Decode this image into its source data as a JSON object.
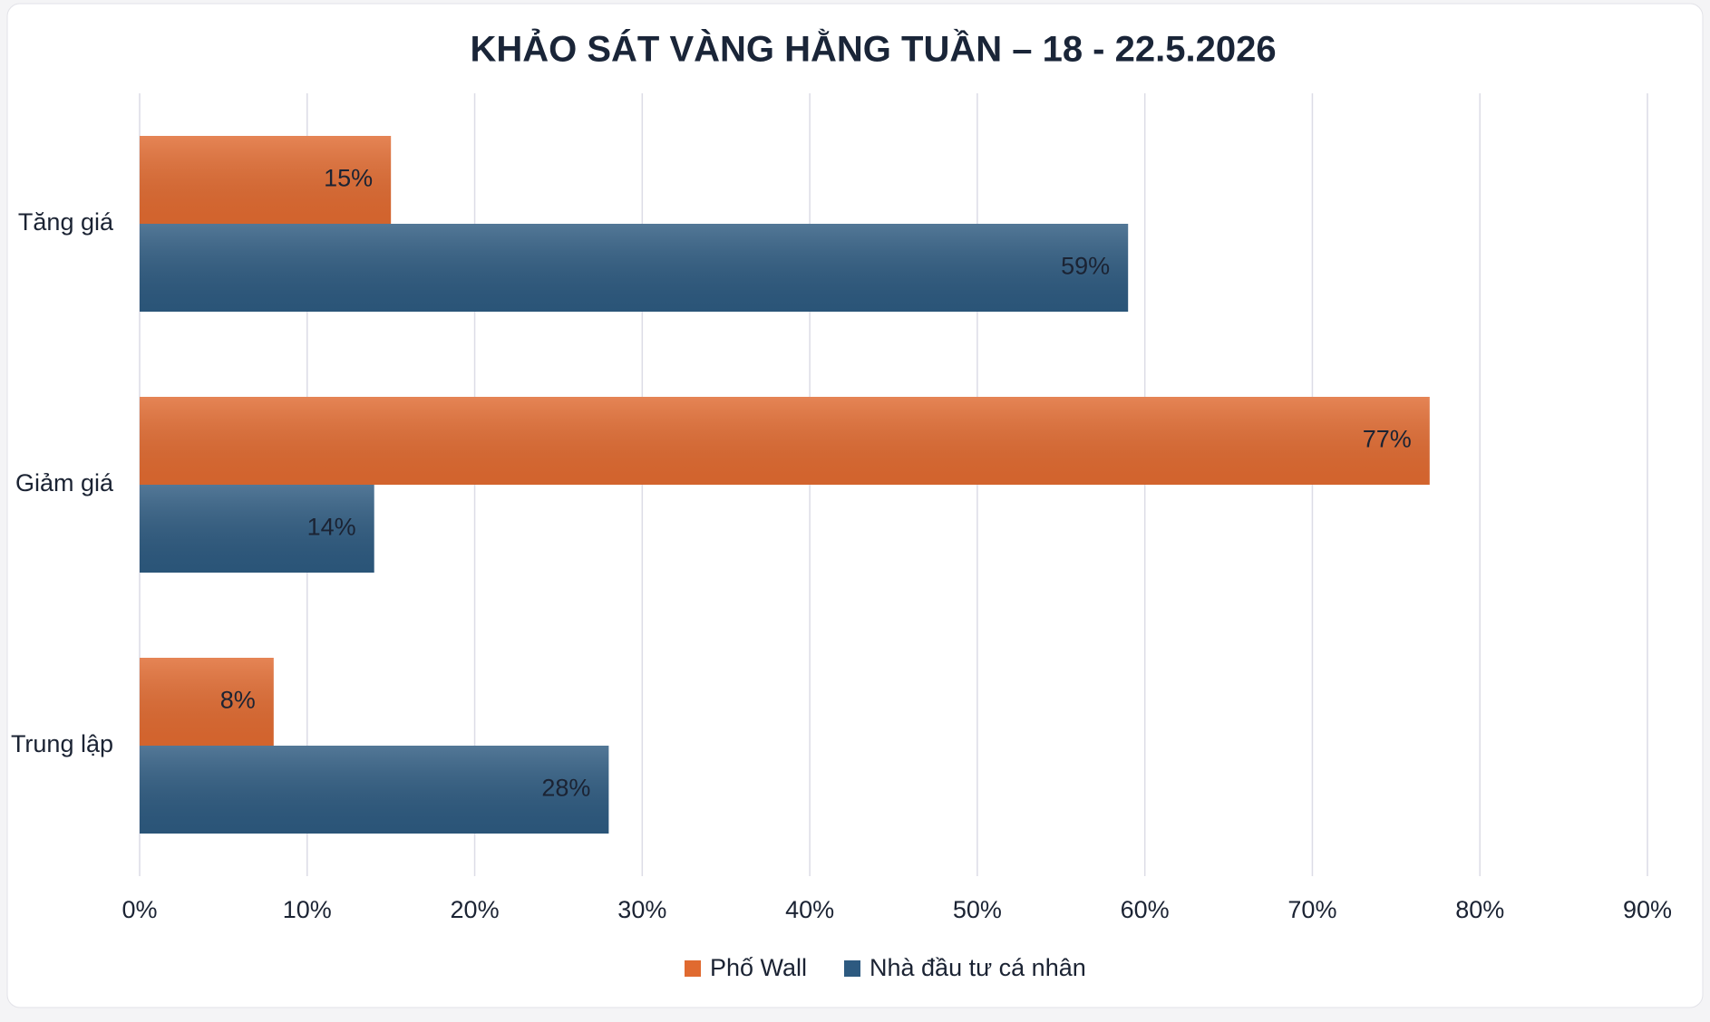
{
  "chart_data": {
    "type": "bar",
    "orientation": "horizontal",
    "title": "KHẢO SÁT VÀNG HẰNG TUẦN – 18 - 22.5.2026",
    "categories": [
      "Tăng giá",
      "Giảm giá",
      "Trung lập"
    ],
    "series": [
      {
        "name": "Phố Wall",
        "color": "#e06a30",
        "values": [
          15,
          77,
          8
        ],
        "value_labels": [
          "15%",
          "77%",
          "8%"
        ]
      },
      {
        "name": "Nhà đầu tư cá nhân",
        "color": "#2d5a80",
        "values": [
          59,
          14,
          28
        ],
        "value_labels": [
          "59%",
          "14%",
          "28%"
        ]
      }
    ],
    "xlim": [
      0,
      90
    ],
    "xticks": [
      {
        "value": 0,
        "label": "0%"
      },
      {
        "value": 10,
        "label": "10%"
      },
      {
        "value": 20,
        "label": "20%"
      },
      {
        "value": 30,
        "label": "30%"
      },
      {
        "value": 40,
        "label": "40%"
      },
      {
        "value": 50,
        "label": "50%"
      },
      {
        "value": 60,
        "label": "60%"
      },
      {
        "value": 70,
        "label": "70%"
      },
      {
        "value": 80,
        "label": "80%"
      },
      {
        "value": 90,
        "label": "90%"
      }
    ],
    "grid": true,
    "legend": "bottom"
  }
}
